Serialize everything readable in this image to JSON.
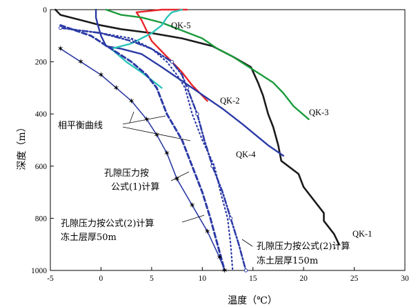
{
  "chart_data": {
    "type": "line",
    "xlabel": "温度（℃）",
    "ylabel": "深度（m）",
    "xlim": [
      -5,
      30
    ],
    "ylim": [
      0,
      1000
    ],
    "y_inverted": true,
    "xticks": [
      "-5",
      "0",
      "5",
      "10",
      "15",
      "20",
      "25",
      "30"
    ],
    "yticks": [
      "0",
      "200",
      "400",
      "600",
      "800",
      "1000"
    ],
    "series": [
      {
        "name": "QK-1",
        "color": "#1a1a1a",
        "style": "solid",
        "points": [
          [
            -4.5,
            0
          ],
          [
            -4,
            20
          ],
          [
            -2,
            40
          ],
          [
            0,
            60
          ],
          [
            2,
            75
          ],
          [
            5,
            90
          ],
          [
            8,
            110
          ],
          [
            11,
            140
          ],
          [
            13,
            180
          ],
          [
            14.8,
            220
          ],
          [
            15.5,
            280
          ],
          [
            16,
            330
          ],
          [
            16.5,
            400
          ],
          [
            17,
            450
          ],
          [
            17.5,
            520
          ],
          [
            17.8,
            580
          ],
          [
            19.5,
            630
          ],
          [
            20,
            680
          ],
          [
            21,
            730
          ],
          [
            22,
            780
          ],
          [
            22,
            810
          ],
          [
            23,
            860
          ],
          [
            23.5,
            900
          ]
        ]
      },
      {
        "name": "QK-2",
        "color": "#e8252a",
        "style": "solid",
        "points": [
          [
            8.5,
            0
          ],
          [
            6,
            0
          ],
          [
            3.5,
            10
          ],
          [
            4,
            40
          ],
          [
            4.5,
            80
          ],
          [
            5,
            120
          ],
          [
            6,
            160
          ],
          [
            7,
            200
          ],
          [
            8,
            240
          ],
          [
            9,
            290
          ],
          [
            10,
            330
          ],
          [
            10.5,
            350
          ]
        ]
      },
      {
        "name": "QK-3",
        "color": "#1a9a3a",
        "style": "solid",
        "points": [
          [
            0.5,
            0
          ],
          [
            2,
            20
          ],
          [
            4,
            30
          ],
          [
            6,
            50
          ],
          [
            8,
            80
          ],
          [
            10,
            110
          ],
          [
            11.5,
            150
          ],
          [
            13,
            180
          ],
          [
            15,
            230
          ],
          [
            17,
            280
          ],
          [
            18,
            320
          ],
          [
            19,
            370
          ],
          [
            20.5,
            420
          ]
        ]
      },
      {
        "name": "QK-4",
        "color": "#2b3aa5",
        "style": "solid",
        "points": [
          [
            -0.5,
            0
          ],
          [
            -0.5,
            30
          ],
          [
            -0.3,
            60
          ],
          [
            0,
            100
          ],
          [
            0.5,
            140
          ],
          [
            2,
            150
          ],
          [
            4,
            170
          ],
          [
            6,
            220
          ],
          [
            9,
            300
          ],
          [
            12,
            380
          ],
          [
            14,
            440
          ],
          [
            16.5,
            520
          ],
          [
            18,
            560
          ]
        ]
      },
      {
        "name": "QK-5",
        "color": "#2cc3b8",
        "style": "solid",
        "points": [
          [
            8,
            0
          ],
          [
            7,
            10
          ],
          [
            6.5,
            30
          ],
          [
            6,
            60
          ],
          [
            5,
            90
          ],
          [
            3,
            130
          ],
          [
            1,
            150
          ],
          [
            2.5,
            200
          ],
          [
            4,
            240
          ],
          [
            5,
            270
          ],
          [
            6,
            300
          ]
        ]
      },
      {
        "name": "相平衡曲线",
        "color": "#2b3aa5",
        "style": "dotted",
        "points": [
          [
            -4,
            70
          ],
          [
            0,
            90
          ],
          [
            3,
            110
          ],
          [
            5,
            150
          ],
          [
            6.5,
            200
          ],
          [
            7.5,
            250
          ],
          [
            8.3,
            300
          ],
          [
            9,
            400
          ],
          [
            10,
            500
          ],
          [
            11.2,
            600
          ],
          [
            11.8,
            700
          ],
          [
            12.5,
            800
          ],
          [
            12.8,
            900
          ],
          [
            13,
            1000
          ]
        ]
      },
      {
        "name": "孔隙压力按公式(1)计算",
        "color": "#2b3aa5",
        "style": "dashed",
        "points": [
          [
            -4,
            60
          ],
          [
            -1,
            100
          ],
          [
            1,
            150
          ],
          [
            3,
            200
          ],
          [
            4.5,
            250
          ],
          [
            5.5,
            300
          ],
          [
            6.5,
            400
          ],
          [
            8,
            500
          ],
          [
            9,
            600
          ],
          [
            10,
            700
          ],
          [
            10.8,
            800
          ],
          [
            11.5,
            900
          ],
          [
            12.2,
            1000
          ]
        ]
      },
      {
        "name": "孔隙压力按公式(2)计算 冻土层厚50m",
        "color": "#2b3aa5",
        "style": "starred",
        "points": [
          [
            -4,
            150
          ],
          [
            -2,
            200
          ],
          [
            0,
            250
          ],
          [
            1.5,
            300
          ],
          [
            3,
            350
          ],
          [
            4.5,
            420
          ],
          [
            5.5,
            480
          ],
          [
            6.5,
            550
          ],
          [
            7.5,
            650
          ],
          [
            9,
            750
          ],
          [
            10.5,
            850
          ],
          [
            11.7,
            950
          ],
          [
            12.2,
            1000
          ]
        ]
      },
      {
        "name": "孔隙压力按公式(2)计算 冻土层厚150m",
        "color": "#2b3aa5",
        "style": "dash-dot",
        "points": [
          [
            -4,
            70
          ],
          [
            0,
            90
          ],
          [
            3,
            120
          ],
          [
            5,
            150
          ],
          [
            7,
            200
          ],
          [
            8,
            250
          ],
          [
            8.5,
            300
          ],
          [
            9,
            350
          ],
          [
            9.5,
            400
          ],
          [
            10.2,
            500
          ],
          [
            11,
            600
          ],
          [
            12,
            700
          ],
          [
            12.8,
            800
          ],
          [
            13.6,
            900
          ],
          [
            14.3,
            1000
          ]
        ]
      }
    ],
    "well_labels": [
      "QK-5",
      "QK-2",
      "QK-3",
      "QK-4",
      "QK-1"
    ],
    "annotations": {
      "phase_eq": "相平衡曲线",
      "formula1_line1": "孔隙压力按",
      "formula1_line2": "公式(1)计算",
      "formula2_50_line1": "孔隙压力按公式(2)计算",
      "formula2_50_line2": "冻土层厚50m",
      "formula2_150_line1": "孔隙压力按公式(2)计算",
      "formula2_150_line2": "冻土层厚150m"
    }
  }
}
